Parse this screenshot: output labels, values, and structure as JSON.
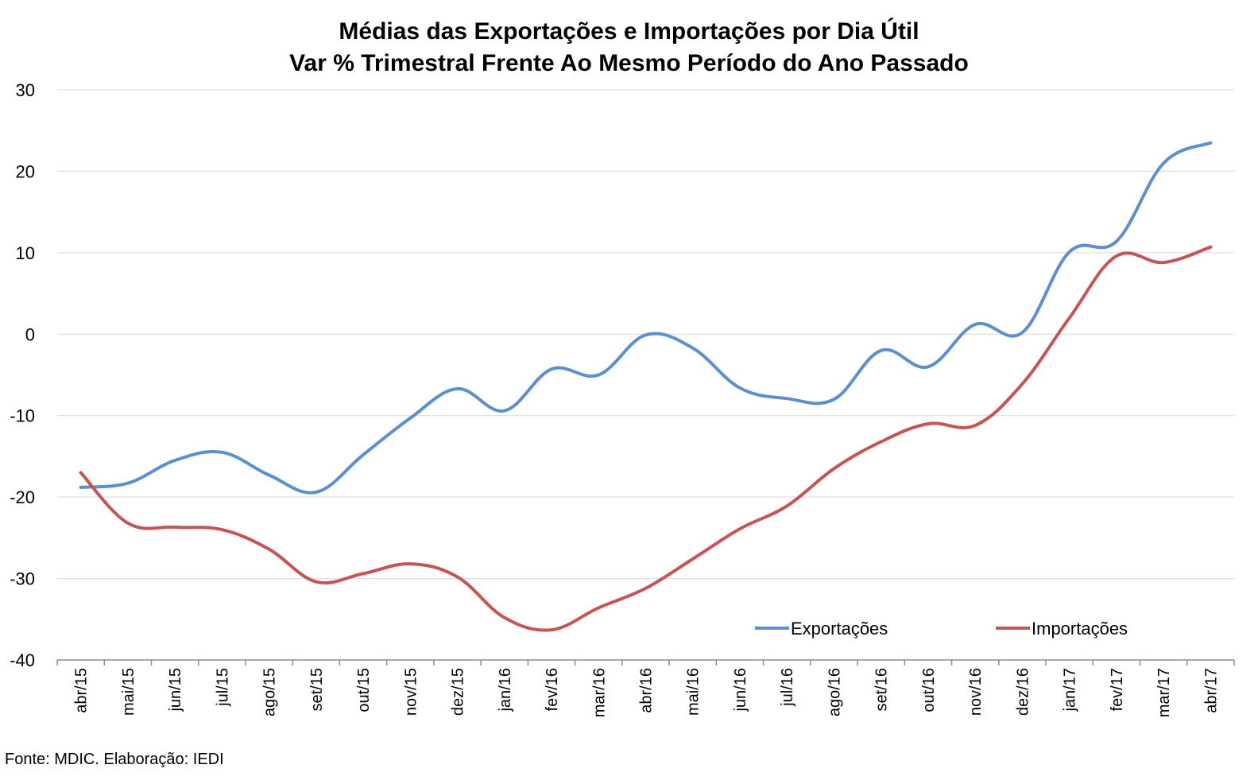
{
  "chart_data": {
    "type": "line",
    "title": "Médias das Exportações e Importações por Dia Útil",
    "subtitle": "Var % Trimestral Frente Ao Mesmo Período do Ano Passado",
    "xlabel": "",
    "ylabel": "",
    "ylim": [
      -40,
      30
    ],
    "yticks": [
      30,
      20,
      10,
      0,
      -10,
      -20,
      -30,
      -40
    ],
    "yticks_labels": [
      "30",
      "20",
      "10",
      "0",
      "-10",
      "-20",
      "-30",
      "-40"
    ],
    "grid": true,
    "legend_position": "bottom-right",
    "categories": [
      "abr/15",
      "mai/15",
      "jun/15",
      "jul/15",
      "ago/15",
      "set/15",
      "out/15",
      "nov/15",
      "dez/15",
      "jan/16",
      "fev/16",
      "mar/16",
      "abr/16",
      "mai/16",
      "jun/16",
      "jul/16",
      "ago/16",
      "set/16",
      "out/16",
      "nov/16",
      "dez/16",
      "jan/17",
      "fev/17",
      "mar/17",
      "abr/17"
    ],
    "series": [
      {
        "name": "Exportações",
        "color": "#5b8fd0",
        "values": [
          -18.8,
          -18.3,
          -15.5,
          -14.5,
          -17.3,
          -19.4,
          -14.8,
          -10.3,
          -6.7,
          -9.4,
          -4.3,
          -5.0,
          -0.1,
          -1.7,
          -6.6,
          -7.9,
          -8.0,
          -2.0,
          -4.0,
          1.2,
          0.2,
          10.1,
          11.4,
          21.0,
          23.5
        ]
      },
      {
        "name": "Importações",
        "color": "#c65355",
        "values": [
          -17.0,
          -23.2,
          -23.7,
          -24.0,
          -26.4,
          -30.4,
          -29.4,
          -28.2,
          -29.8,
          -34.8,
          -36.3,
          -33.6,
          -31.2,
          -27.6,
          -23.9,
          -21.1,
          -16.5,
          -13.2,
          -11.0,
          -11.2,
          -6.1,
          2.0,
          9.6,
          8.8,
          10.7
        ]
      }
    ]
  },
  "source_note": "Fonte: MDIC. Elaboração: IEDI"
}
